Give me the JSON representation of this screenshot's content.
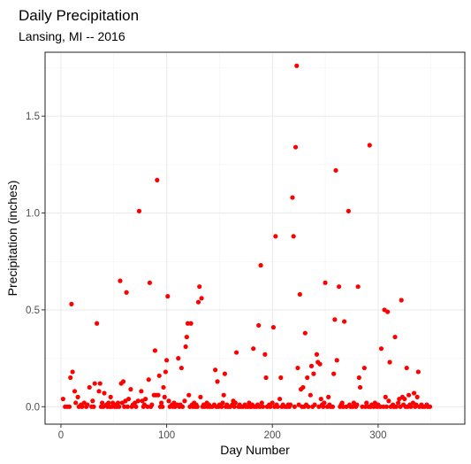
{
  "chart_data": {
    "type": "scatter",
    "title": "Daily Precipitation",
    "subtitle": "Lansing, MI -- 2016",
    "xlabel": "Day Number",
    "ylabel": "Precipitation (inches)",
    "xlim": [
      -15,
      382
    ],
    "ylim": [
      -0.09,
      1.83
    ],
    "x_ticks": [
      0,
      100,
      200,
      300
    ],
    "x_tick_labels": [
      "0",
      "100",
      "200",
      "300"
    ],
    "y_ticks": [
      0.0,
      0.5,
      1.0,
      1.5
    ],
    "y_tick_labels": [
      "0.0",
      "0.5",
      "1.0",
      "1.5"
    ],
    "grid": true,
    "point_color": "#ff0000",
    "series": [
      {
        "name": "Daily Precipitation",
        "points": [
          [
            2,
            0.04
          ],
          [
            4,
            0.0
          ],
          [
            6,
            0.0
          ],
          [
            8,
            0.0
          ],
          [
            9,
            0.15
          ],
          [
            10,
            0.53
          ],
          [
            11,
            0.18
          ],
          [
            13,
            0.08
          ],
          [
            14,
            0.02
          ],
          [
            16,
            0.05
          ],
          [
            17,
            0.0
          ],
          [
            19,
            0.01
          ],
          [
            20,
            0.0
          ],
          [
            22,
            0.02
          ],
          [
            24,
            0.0
          ],
          [
            25,
            0.01
          ],
          [
            27,
            0.1
          ],
          [
            29,
            0.0
          ],
          [
            30,
            0.03
          ],
          [
            31,
            0.0
          ],
          [
            32,
            0.12
          ],
          [
            34,
            0.43
          ],
          [
            36,
            0.08
          ],
          [
            37,
            0.12
          ],
          [
            38,
            0.0
          ],
          [
            39,
            0.02
          ],
          [
            40,
            0.0
          ],
          [
            41,
            0.07
          ],
          [
            43,
            0.01
          ],
          [
            44,
            0.0
          ],
          [
            45,
            0.02
          ],
          [
            46,
            0.0
          ],
          [
            47,
            0.05
          ],
          [
            48,
            0.0
          ],
          [
            49,
            0.02
          ],
          [
            51,
            0.0
          ],
          [
            52,
            0.01
          ],
          [
            53,
            0.0
          ],
          [
            54,
            0.02
          ],
          [
            55,
            0.0
          ],
          [
            56,
            0.65
          ],
          [
            57,
            0.12
          ],
          [
            58,
            0.02
          ],
          [
            59,
            0.13
          ],
          [
            60,
            0.0
          ],
          [
            61,
            0.03
          ],
          [
            62,
            0.59
          ],
          [
            63,
            0.0
          ],
          [
            64,
            0.04
          ],
          [
            66,
            0.09
          ],
          [
            67,
            0.0
          ],
          [
            68,
            0.01
          ],
          [
            70,
            0.02
          ],
          [
            71,
            0.0
          ],
          [
            73,
            0.03
          ],
          [
            74,
            1.01
          ],
          [
            76,
            0.08
          ],
          [
            77,
            0.03
          ],
          [
            78,
            0.0
          ],
          [
            79,
            0.01
          ],
          [
            80,
            0.04
          ],
          [
            82,
            0.0
          ],
          [
            83,
            0.14
          ],
          [
            84,
            0.64
          ],
          [
            85,
            0.0
          ],
          [
            86,
            0.01
          ],
          [
            88,
            0.06
          ],
          [
            89,
            0.29
          ],
          [
            90,
            0.06
          ],
          [
            91,
            1.17
          ],
          [
            92,
            0.06
          ],
          [
            93,
            0.16
          ],
          [
            94,
            0.0
          ],
          [
            95,
            0.02
          ],
          [
            96,
            0.0
          ],
          [
            97,
            0.1
          ],
          [
            98,
            0.05
          ],
          [
            99,
            0.18
          ],
          [
            100,
            0.24
          ],
          [
            101,
            0.57
          ],
          [
            102,
            0.03
          ],
          [
            103,
            0.0
          ],
          [
            105,
            0.01
          ],
          [
            106,
            0.0
          ],
          [
            107,
            0.02
          ],
          [
            108,
            0.0
          ],
          [
            110,
            0.01
          ],
          [
            111,
            0.25
          ],
          [
            112,
            0.0
          ],
          [
            113,
            0.01
          ],
          [
            114,
            0.2
          ],
          [
            115,
            0.0
          ],
          [
            117,
            0.03
          ],
          [
            118,
            0.31
          ],
          [
            119,
            0.36
          ],
          [
            120,
            0.43
          ],
          [
            121,
            0.06
          ],
          [
            122,
            0.0
          ],
          [
            123,
            0.43
          ],
          [
            124,
            0.01
          ],
          [
            125,
            0.0
          ],
          [
            126,
            0.02
          ],
          [
            127,
            0.0
          ],
          [
            128,
            0.01
          ],
          [
            129,
            0.0
          ],
          [
            130,
            0.54
          ],
          [
            131,
            0.62
          ],
          [
            132,
            0.05
          ],
          [
            133,
            0.56
          ],
          [
            134,
            0.0
          ],
          [
            135,
            0.01
          ],
          [
            136,
            0.0
          ],
          [
            138,
            0.02
          ],
          [
            139,
            0.0
          ],
          [
            140,
            0.01
          ],
          [
            141,
            0.0
          ],
          [
            143,
            0.0
          ],
          [
            145,
            0.01
          ],
          [
            146,
            0.19
          ],
          [
            147,
            0.0
          ],
          [
            148,
            0.13
          ],
          [
            149,
            0.0
          ],
          [
            150,
            0.01
          ],
          [
            152,
            0.0
          ],
          [
            153,
            0.02
          ],
          [
            154,
            0.06
          ],
          [
            155,
            0.17
          ],
          [
            156,
            0.0
          ],
          [
            157,
            0.01
          ],
          [
            158,
            0.0
          ],
          [
            160,
            0.0
          ],
          [
            162,
            0.01
          ],
          [
            163,
            0.03
          ],
          [
            164,
            0.0
          ],
          [
            165,
            0.02
          ],
          [
            166,
            0.28
          ],
          [
            168,
            0.0
          ],
          [
            169,
            0.01
          ],
          [
            170,
            0.0
          ],
          [
            172,
            0.0
          ],
          [
            174,
            0.01
          ],
          [
            175,
            0.0
          ],
          [
            177,
            0.0
          ],
          [
            178,
            0.02
          ],
          [
            179,
            0.0
          ],
          [
            180,
            0.0
          ],
          [
            181,
            0.01
          ],
          [
            182,
            0.3
          ],
          [
            183,
            0.0
          ],
          [
            185,
            0.0
          ],
          [
            186,
            0.01
          ],
          [
            187,
            0.42
          ],
          [
            188,
            0.0
          ],
          [
            189,
            0.73
          ],
          [
            190,
            0.02
          ],
          [
            191,
            0.0
          ],
          [
            193,
            0.27
          ],
          [
            194,
            0.15
          ],
          [
            195,
            0.0
          ],
          [
            197,
            0.01
          ],
          [
            198,
            0.0
          ],
          [
            200,
            0.02
          ],
          [
            201,
            0.41
          ],
          [
            202,
            0.0
          ],
          [
            203,
            0.88
          ],
          [
            204,
            0.01
          ],
          [
            205,
            0.0
          ],
          [
            207,
            0.04
          ],
          [
            208,
            0.15
          ],
          [
            209,
            0.0
          ],
          [
            210,
            0.01
          ],
          [
            212,
            0.0
          ],
          [
            214,
            0.0
          ],
          [
            215,
            0.01
          ],
          [
            216,
            0.0
          ],
          [
            217,
            0.01
          ],
          [
            219,
            1.08
          ],
          [
            220,
            0.88
          ],
          [
            221,
            0.0
          ],
          [
            222,
            1.34
          ],
          [
            223,
            1.76
          ],
          [
            224,
            0.2
          ],
          [
            225,
            0.01
          ],
          [
            226,
            0.58
          ],
          [
            227,
            0.09
          ],
          [
            228,
            0.0
          ],
          [
            229,
            0.1
          ],
          [
            230,
            0.0
          ],
          [
            231,
            0.38
          ],
          [
            232,
            0.01
          ],
          [
            233,
            0.15
          ],
          [
            234,
            0.0
          ],
          [
            236,
            0.06
          ],
          [
            237,
            0.21
          ],
          [
            238,
            0.0
          ],
          [
            239,
            0.17
          ],
          [
            240,
            0.01
          ],
          [
            242,
            0.27
          ],
          [
            243,
            0.23
          ],
          [
            244,
            0.0
          ],
          [
            245,
            0.22
          ],
          [
            246,
            0.04
          ],
          [
            247,
            0.01
          ],
          [
            248,
            0.0
          ],
          [
            249,
            0.02
          ],
          [
            250,
            0.64
          ],
          [
            252,
            0.0
          ],
          [
            253,
            0.05
          ],
          [
            254,
            0.01
          ],
          [
            255,
            0.0
          ],
          [
            257,
            0.0
          ],
          [
            258,
            0.17
          ],
          [
            259,
            0.45
          ],
          [
            260,
            1.22
          ],
          [
            261,
            0.24
          ],
          [
            263,
            0.62
          ],
          [
            264,
            0.0
          ],
          [
            265,
            0.01
          ],
          [
            266,
            0.02
          ],
          [
            267,
            0.0
          ],
          [
            268,
            0.44
          ],
          [
            270,
            0.0
          ],
          [
            272,
            1.01
          ],
          [
            273,
            0.01
          ],
          [
            274,
            0.0
          ],
          [
            276,
            0.0
          ],
          [
            277,
            0.02
          ],
          [
            279,
            0.0
          ],
          [
            280,
            0.01
          ],
          [
            281,
            0.62
          ],
          [
            282,
            0.15
          ],
          [
            283,
            0.1
          ],
          [
            285,
            0.0
          ],
          [
            287,
            0.2
          ],
          [
            288,
            0.0
          ],
          [
            289,
            0.02
          ],
          [
            291,
            0.0
          ],
          [
            292,
            1.35
          ],
          [
            293,
            0.0
          ],
          [
            294,
            0.01
          ],
          [
            296,
            0.0
          ],
          [
            297,
            0.02
          ],
          [
            299,
            0.0
          ],
          [
            300,
            0.01
          ],
          [
            302,
            0.0
          ],
          [
            303,
            0.3
          ],
          [
            305,
            0.0
          ],
          [
            306,
            0.5
          ],
          [
            307,
            0.05
          ],
          [
            308,
            0.0
          ],
          [
            309,
            0.49
          ],
          [
            310,
            0.03
          ],
          [
            311,
            0.23
          ],
          [
            312,
            0.0
          ],
          [
            314,
            0.01
          ],
          [
            315,
            0.0
          ],
          [
            316,
            0.36
          ],
          [
            317,
            0.0
          ],
          [
            319,
            0.02
          ],
          [
            320,
            0.04
          ],
          [
            321,
            0.0
          ],
          [
            322,
            0.55
          ],
          [
            323,
            0.05
          ],
          [
            324,
            0.01
          ],
          [
            325,
            0.04
          ],
          [
            326,
            0.0
          ],
          [
            327,
            0.2
          ],
          [
            328,
            0.0
          ],
          [
            329,
            0.06
          ],
          [
            330,
            0.01
          ],
          [
            331,
            0.0
          ],
          [
            333,
            0.02
          ],
          [
            334,
            0.07
          ],
          [
            335,
            0.0
          ],
          [
            336,
            0.01
          ],
          [
            337,
            0.05
          ],
          [
            338,
            0.18
          ],
          [
            339,
            0.0
          ],
          [
            341,
            0.01
          ],
          [
            342,
            0.0
          ],
          [
            344,
            0.0
          ],
          [
            346,
            0.01
          ],
          [
            347,
            0.0
          ],
          [
            349,
            0.0
          ]
        ]
      }
    ]
  }
}
